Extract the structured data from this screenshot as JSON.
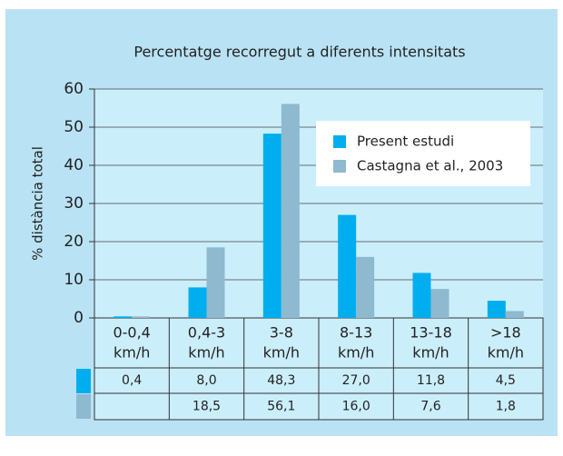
{
  "chart_data": {
    "type": "bar",
    "title": "Percentatge recorregut a diferents intensitats",
    "y_label": "% distància total",
    "categories": [
      "0-0,4",
      "0,4-3",
      "3-8",
      "8-13",
      "13-18",
      ">18"
    ],
    "category_unit": "km/h",
    "series": [
      {
        "name": "Present estudi",
        "color": "#00aeef",
        "values": [
          0.4,
          8.0,
          48.3,
          27.0,
          11.8,
          4.5
        ],
        "value_labels": [
          "0,4",
          "8,0",
          "48,3",
          "27,0",
          "11,8",
          "4,5"
        ]
      },
      {
        "name": "Castagna et al., 2003",
        "color": "#8fb9cf",
        "values": [
          0.4,
          18.5,
          56.1,
          16.0,
          7.6,
          1.8
        ],
        "value_labels": [
          null,
          "18,5",
          "56,1",
          "16,0",
          "7,6",
          "1,8"
        ]
      }
    ],
    "ylim": [
      0,
      60
    ],
    "yticks": [
      0,
      10,
      20,
      30,
      40,
      50,
      60
    ],
    "grid": true
  }
}
